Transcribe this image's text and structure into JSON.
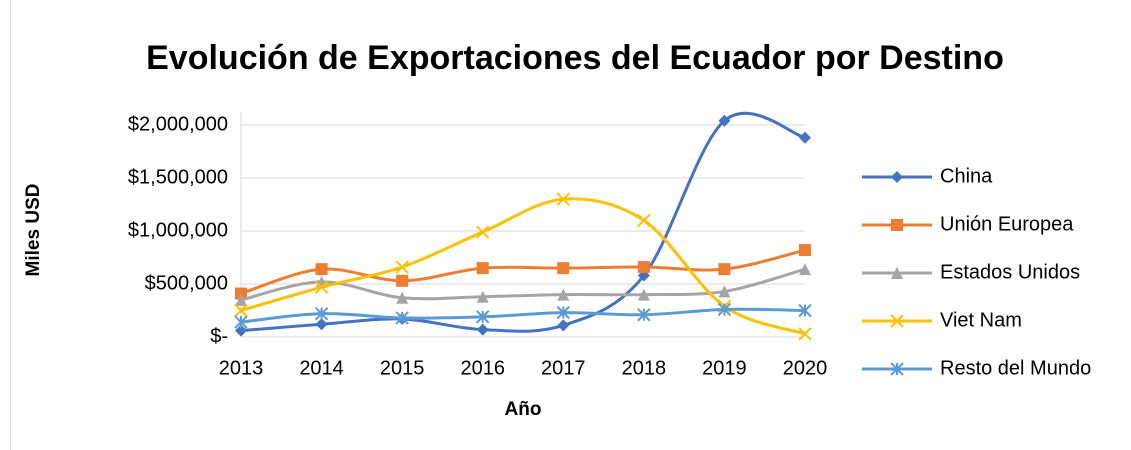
{
  "chart_data": {
    "type": "line",
    "smooth": true,
    "title": "Evolución de Exportaciones del Ecuador por Destino",
    "x_label": "Año",
    "y_label": "Miles USD",
    "categories": [
      "2013",
      "2014",
      "2015",
      "2016",
      "2017",
      "2018",
      "2019",
      "2020"
    ],
    "ylim": [
      0,
      2000000
    ],
    "yticks": [
      {
        "value": 0,
        "label": "$-"
      },
      {
        "value": 500000,
        "label": "$500,000"
      },
      {
        "value": 1000000,
        "label": "$1,000,000"
      },
      {
        "value": 1500000,
        "label": "$1,500,000"
      },
      {
        "value": 2000000,
        "label": "$2,000,000"
      }
    ],
    "grid": true,
    "legend": "right",
    "series": [
      {
        "name": "China",
        "color": "#4472c4",
        "marker": "diamond",
        "values": [
          60000,
          120000,
          170000,
          70000,
          110000,
          580000,
          2040000,
          1880000
        ]
      },
      {
        "name": "Unión Europea",
        "color": "#ed7d31",
        "marker": "square",
        "values": [
          410000,
          640000,
          530000,
          650000,
          650000,
          660000,
          640000,
          820000
        ]
      },
      {
        "name": "Estados Unidos",
        "color": "#a5a5a5",
        "marker": "triangle",
        "values": [
          350000,
          520000,
          370000,
          380000,
          400000,
          400000,
          430000,
          640000
        ]
      },
      {
        "name": "Viet Nam",
        "color": "#ffc000",
        "marker": "x",
        "values": [
          250000,
          470000,
          660000,
          990000,
          1300000,
          1100000,
          290000,
          30000
        ]
      },
      {
        "name": "Resto del Mundo",
        "color": "#5b9bd5",
        "marker": "star",
        "values": [
          140000,
          220000,
          180000,
          190000,
          230000,
          210000,
          260000,
          250000
        ]
      }
    ]
  }
}
